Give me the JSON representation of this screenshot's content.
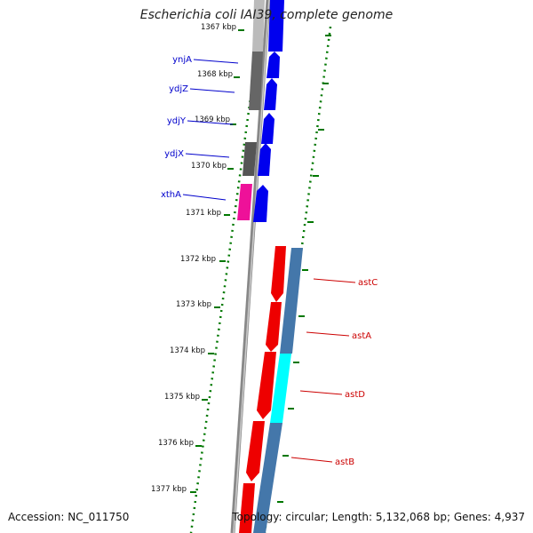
{
  "title": "Escherichia coli IAI39, complete genome",
  "accession": "Accession: NC_011750",
  "summary": "Topology: circular; Length: 5,132,068 bp; Genes: 4,937",
  "ticks": [
    "1367 kbp",
    "1368 kbp",
    "1369 kbp",
    "1370 kbp",
    "1371 kbp",
    "1372 kbp",
    "1373 kbp",
    "1374 kbp",
    "1375 kbp",
    "1376 kbp",
    "1377 kbp"
  ],
  "labels_left": [
    "ynjA",
    "ydjZ",
    "ydjY",
    "ydjX",
    "xthA"
  ],
  "labels_right": [
    "astC",
    "astA",
    "astD",
    "astB"
  ],
  "colors": {
    "cds_blue": "#0000ee",
    "cds_red": "#ee0000",
    "grey": "#666666",
    "light_grey": "#bbbbbb",
    "magenta": "#ee1199",
    "steel_blue": "#4477aa",
    "cyan": "#00ffff",
    "tick_green": "#007700",
    "backbone": "#777777"
  }
}
